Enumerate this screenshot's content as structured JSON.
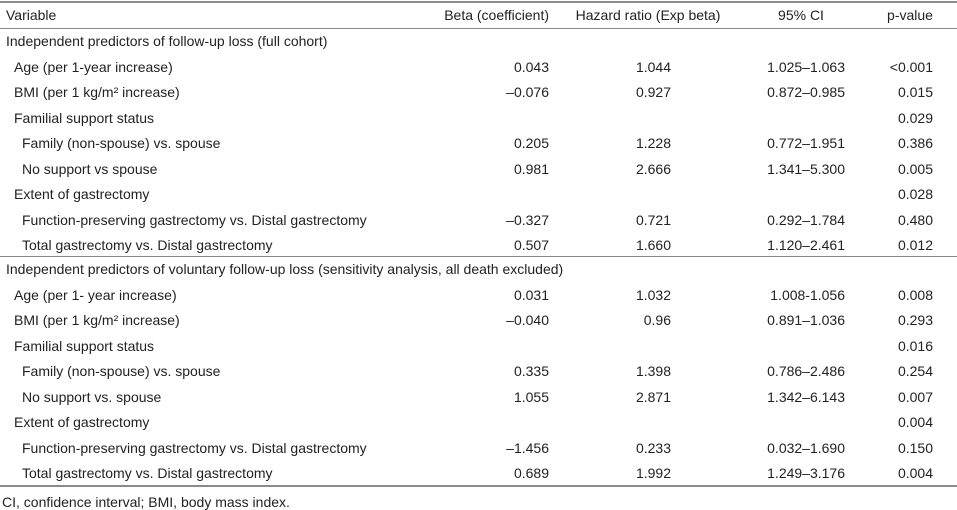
{
  "header": {
    "columns": [
      "Variable",
      "Beta (coefficient)",
      "Hazard ratio (Exp beta)",
      "95% CI",
      "p-value"
    ]
  },
  "sections": [
    {
      "title": "Independent predictors of follow-up loss (full cohort)",
      "rows": [
        [
          "Age (per 1-year increase)",
          "0.043",
          "1.044",
          "1.025–1.063",
          "<0.001"
        ],
        [
          "BMI (per 1 kg/m² increase)",
          "–0.076",
          "0.927",
          "0.872–0.985",
          "0.015"
        ],
        [
          "Familial support status",
          null,
          null,
          null,
          "0.029"
        ],
        [
          "Family (non-spouse) vs. spouse",
          "0.205",
          "1.228",
          "0.772–1.951",
          "0.386"
        ],
        [
          "No support vs spouse",
          "0.981",
          "2.666",
          "1.341–5.300",
          "0.005"
        ],
        [
          "Extent of gastrectomy",
          null,
          null,
          null,
          "0.028"
        ],
        [
          "Function-preserving gastrectomy vs. Distal gastrectomy",
          "–0.327",
          "0.721",
          "0.292–1.784",
          "0.480"
        ],
        [
          "Total gastrectomy vs. Distal gastrectomy",
          "0.507",
          "1.660",
          "1.120–2.461",
          "0.012"
        ]
      ]
    },
    {
      "title": "Independent predictors of voluntary follow-up loss (sensitivity analysis, all death excluded)",
      "rows": [
        [
          "Age (per 1- year increase)",
          "0.031",
          "1.032",
          "1.008-1.056",
          "0.008"
        ],
        [
          "BMI (per 1 kg/m² increase)",
          "–0.040",
          "0.96",
          "0.891–1.036",
          "0.293"
        ],
        [
          "Familial support status",
          null,
          null,
          null,
          "0.016"
        ],
        [
          "Family (non-spouse) vs. spouse",
          "0.335",
          "1.398",
          "0.786–2.486",
          "0.254"
        ],
        [
          "No support vs. spouse",
          "1.055",
          "2.871",
          "1.342–6.143",
          "0.007"
        ],
        [
          "Extent of gastrectomy",
          null,
          null,
          null,
          "0.004"
        ],
        [
          "Function-preserving gastrectomy vs. Distal gastrectomy",
          "–1.456",
          "0.233",
          "0.032–1.690",
          "0.150"
        ],
        [
          "Total gastrectomy vs. Distal gastrectomy",
          "0.689",
          "1.992",
          "1.249–3.176",
          "0.004"
        ]
      ]
    }
  ],
  "footnote": "CI, confidence interval; BMI, body mass index."
}
